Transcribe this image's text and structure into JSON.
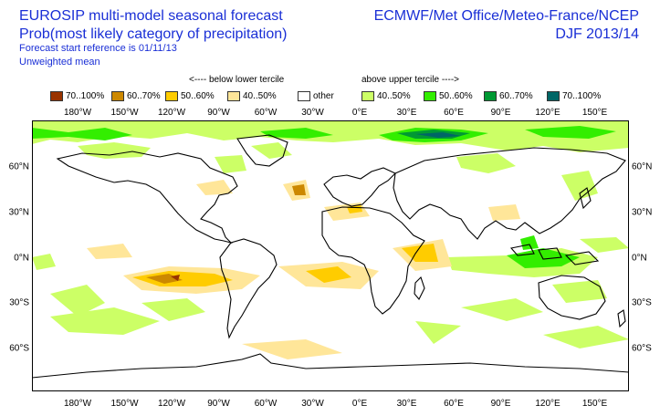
{
  "header": {
    "title_line1": "EUROSIP multi-model seasonal forecast",
    "title_line2": "Prob(most likely category of precipitation)",
    "start_ref": "Forecast start reference is 01/11/13",
    "mean_type": "Unweighted mean",
    "centres": "ECMWF/Met Office/Meteo-France/NCEP",
    "season": "DJF 2013/14"
  },
  "legend": {
    "below_label": "<---- below lower tercile",
    "above_label": "above upper tercile ---->",
    "items": [
      {
        "label": "70..100%",
        "color": "#993300"
      },
      {
        "label": "60..70%",
        "color": "#cc8800"
      },
      {
        "label": "50..60%",
        "color": "#ffcc00"
      },
      {
        "label": "40..50%",
        "color": "#ffe699"
      },
      {
        "label": "other",
        "color": "#ffffff"
      },
      {
        "label": "40..50%",
        "color": "#ccff66"
      },
      {
        "label": "50..60%",
        "color": "#33ee00"
      },
      {
        "label": "60..70%",
        "color": "#009933"
      },
      {
        "label": "70..100%",
        "color": "#006666"
      }
    ]
  },
  "axes": {
    "lon_labels": [
      "180°W",
      "150°W",
      "120°W",
      "90°W",
      "60°W",
      "30°W",
      "0°E",
      "30°E",
      "60°E",
      "90°E",
      "120°E",
      "150°E"
    ],
    "lat_labels": [
      "60°N",
      "30°N",
      "0°N",
      "30°S",
      "60°S"
    ]
  }
}
